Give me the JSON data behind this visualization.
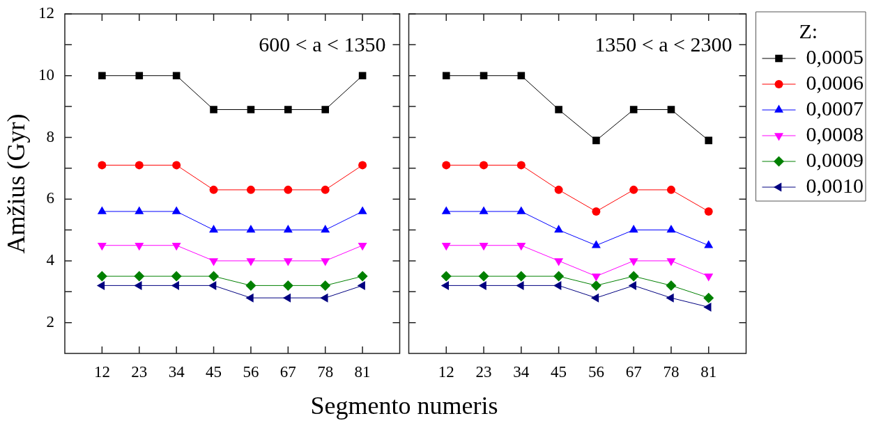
{
  "chart_data": [
    {
      "type": "line",
      "xlabel": "Segmento numeris",
      "ylabel": "Amžius (Gyr)",
      "categories": [
        "12",
        "23",
        "34",
        "45",
        "56",
        "67",
        "78",
        "81"
      ],
      "ylim": [
        1,
        12
      ],
      "yticks": [
        2,
        {
          "value": 3,
          "label": null
        },
        4,
        {
          "value": 5,
          "label": null
        },
        6,
        {
          "value": 7,
          "label": null
        },
        8,
        {
          "value": 9,
          "label": null
        },
        10,
        {
          "value": 11,
          "label": null
        },
        12
      ],
      "annotations": [
        "600 < a < 1350"
      ],
      "series": [
        {
          "color": "#000000",
          "marker": "square",
          "values": [
            10,
            10,
            10,
            8.9,
            8.9,
            8.9,
            8.9,
            10
          ]
        },
        {
          "color": "#ff0000",
          "marker": "circle",
          "values": [
            7.1,
            7.1,
            7.1,
            6.3,
            6.3,
            6.3,
            6.3,
            7.1
          ]
        },
        {
          "color": "#0000ff",
          "marker": "triangle",
          "values": [
            5.6,
            5.6,
            5.6,
            5.0,
            5.0,
            5.0,
            5.0,
            5.6
          ]
        },
        {
          "color": "#ff00ff",
          "marker": "triangle-down",
          "values": [
            4.5,
            4.5,
            4.5,
            4.0,
            4.0,
            4.0,
            4.0,
            4.5
          ]
        },
        {
          "color": "#008000",
          "marker": "diamond",
          "values": [
            3.5,
            3.5,
            3.5,
            3.5,
            3.2,
            3.2,
            3.2,
            3.5
          ]
        },
        {
          "color": "#000080",
          "marker": "triangle-left",
          "values": [
            3.2,
            3.2,
            3.2,
            3.2,
            2.8,
            2.8,
            2.8,
            3.2
          ]
        }
      ]
    },
    {
      "type": "line",
      "categories": [
        "12",
        "23",
        "34",
        "45",
        "56",
        "67",
        "78",
        "81"
      ],
      "ylim": [
        1,
        12
      ],
      "yticks": [
        2,
        {
          "value": 3,
          "label": null
        },
        4,
        {
          "value": 5,
          "label": null
        },
        6,
        {
          "value": 7,
          "label": null
        },
        8,
        {
          "value": 9,
          "label": null
        },
        10,
        {
          "value": 11,
          "label": null
        },
        12
      ],
      "tick_labels": "x",
      "annotations": [
        "1350 < a < 2300"
      ],
      "legend": "top right",
      "legend_title": "Z:",
      "series": [
        {
          "name": "0,0005",
          "color": "#000000",
          "marker": "square",
          "values": [
            10,
            10,
            10,
            8.9,
            7.9,
            8.9,
            8.9,
            7.9
          ]
        },
        {
          "name": "0,0006",
          "color": "#ff0000",
          "marker": "circle",
          "values": [
            7.1,
            7.1,
            7.1,
            6.3,
            5.6,
            6.3,
            6.3,
            5.6
          ]
        },
        {
          "name": "0,0007",
          "color": "#0000ff",
          "marker": "triangle",
          "values": [
            5.6,
            5.6,
            5.6,
            5.0,
            4.5,
            5.0,
            5.0,
            4.5
          ]
        },
        {
          "name": "0,0008",
          "color": "#ff00ff",
          "marker": "triangle-down",
          "values": [
            4.5,
            4.5,
            4.5,
            4.0,
            3.5,
            4.0,
            4.0,
            3.5
          ]
        },
        {
          "name": "0,0009",
          "color": "#008000",
          "marker": "diamond",
          "values": [
            3.5,
            3.5,
            3.5,
            3.5,
            3.2,
            3.5,
            3.2,
            2.8
          ]
        },
        {
          "name": "0,0010",
          "color": "#000080",
          "marker": "triangle-left",
          "values": [
            3.2,
            3.2,
            3.2,
            3.2,
            2.8,
            3.2,
            2.8,
            2.5
          ]
        }
      ]
    }
  ]
}
